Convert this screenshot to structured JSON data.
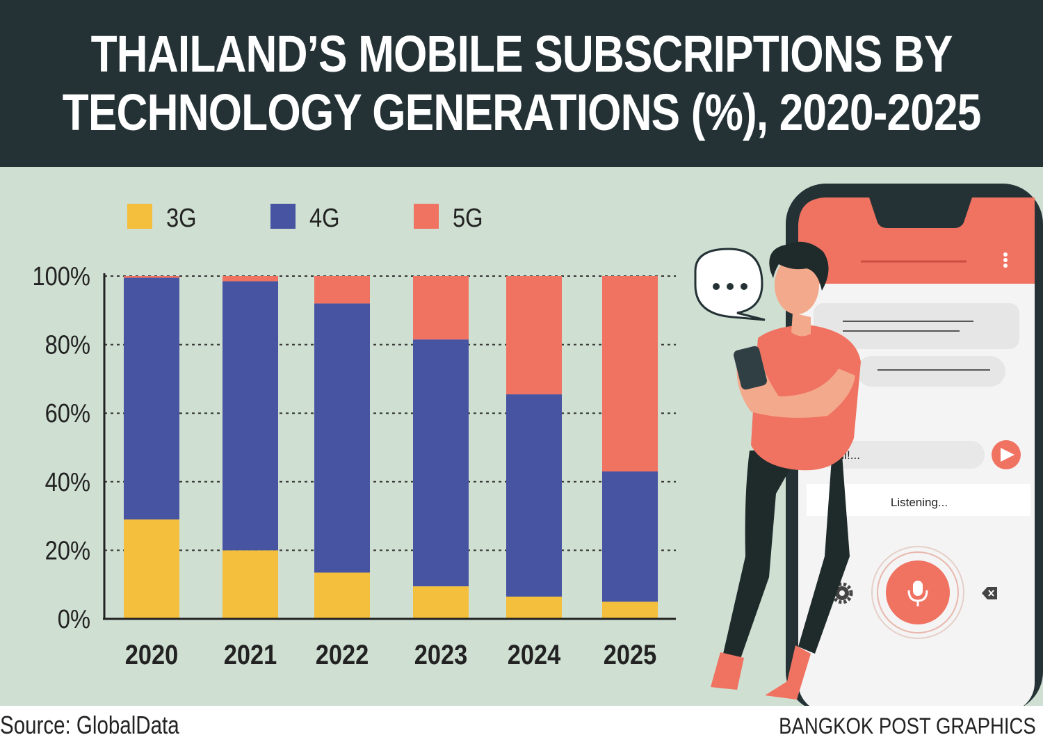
{
  "header": {
    "title_line1": "THAILAND’S MOBILE SUBSCRIPTIONS BY",
    "title_line2": "TECHNOLOGY GENERATIONS (%), 2020-2025"
  },
  "footer": {
    "source": "Source: GlobalData",
    "credit": "BANGKOK POST GRAPHICS"
  },
  "illustration": {
    "chat_input_text": "Hi!...",
    "status_text": "Listening...",
    "icons": [
      "speech-bubble-icon",
      "menu-dots-icon",
      "send-icon",
      "gear-icon",
      "microphone-icon",
      "backspace-icon"
    ]
  },
  "colors": {
    "background": "#cfdfd2",
    "header": "#243236",
    "3G": "#f4bf3c",
    "4G": "#4754a1",
    "5G": "#f07261"
  },
  "chart_data": {
    "type": "bar",
    "stacked": true,
    "categories": [
      "2020",
      "2021",
      "2022",
      "2023",
      "2024",
      "2025"
    ],
    "series": [
      {
        "name": "3G",
        "values": [
          29,
          20,
          13.5,
          9.5,
          6.5,
          5
        ]
      },
      {
        "name": "4G",
        "values": [
          70.5,
          78.5,
          78.5,
          72,
          59,
          38
        ]
      },
      {
        "name": "5G",
        "values": [
          0.5,
          1.5,
          8,
          18.5,
          34.5,
          57
        ]
      }
    ],
    "y_ticks": [
      "0%",
      "20%",
      "40%",
      "60%",
      "80%",
      "100%"
    ],
    "ylim": [
      0,
      100
    ],
    "grid": true,
    "legend_position": "top-left"
  }
}
